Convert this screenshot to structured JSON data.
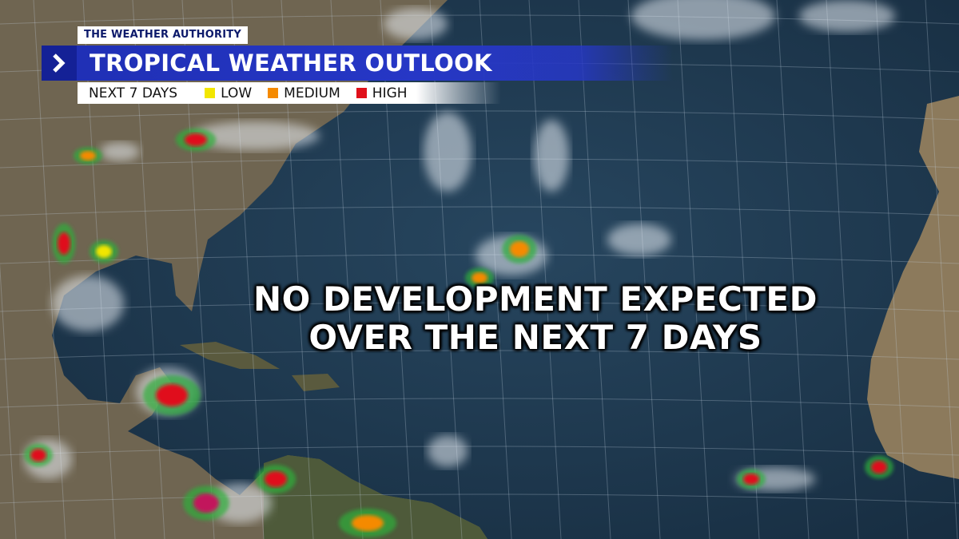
{
  "header": {
    "brand": "THE WEATHER AUTHORITY",
    "title": "TROPICAL WEATHER OUTLOOK"
  },
  "legend": {
    "period": "NEXT 7 DAYS",
    "items": [
      {
        "label": "LOW",
        "color": "#f2e600"
      },
      {
        "label": "MEDIUM",
        "color": "#f58a00"
      },
      {
        "label": "HIGH",
        "color": "#e0101a"
      }
    ]
  },
  "message": {
    "lines": [
      "NO DEVELOPMENT EXPECTED",
      "OVER THE NEXT 7 DAYS"
    ]
  }
}
